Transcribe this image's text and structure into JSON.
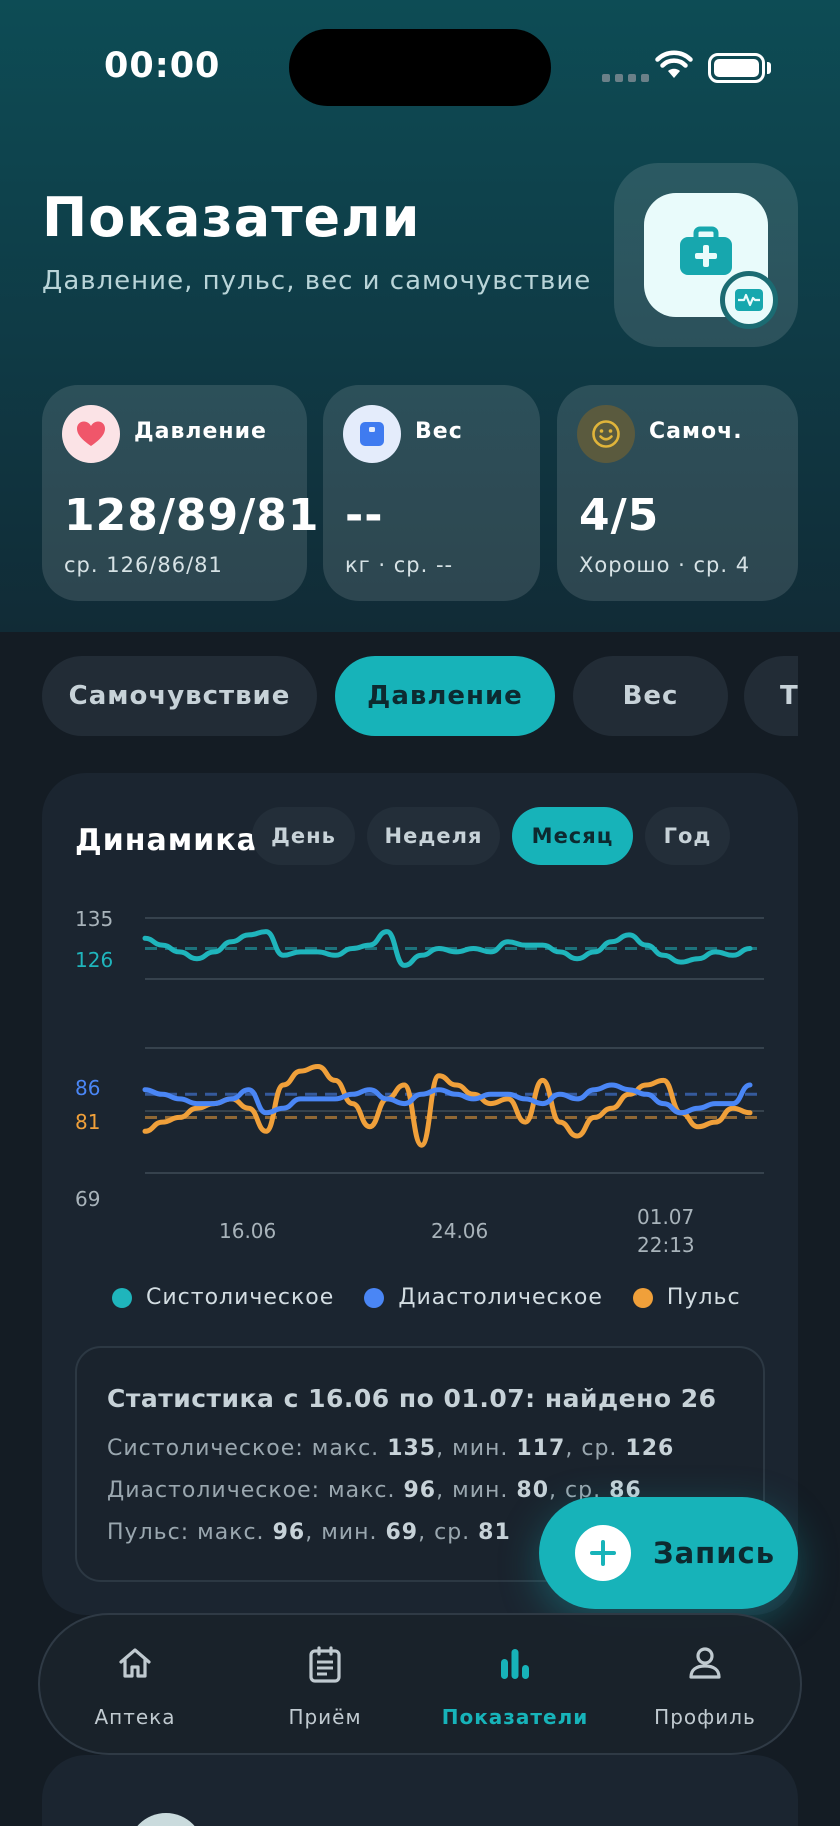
{
  "status_bar": {
    "time": "00:00"
  },
  "header": {
    "title": "Показатели",
    "subtitle": "Давление, пульс, вес и самочувствие",
    "badge_icon": "medical-kit-icon"
  },
  "metrics": [
    {
      "id": "pressure",
      "label": "Давление",
      "value": "128/89/81",
      "sub": "ср. 126/86/81",
      "icon": "heart-icon",
      "color": "#f0566a"
    },
    {
      "id": "weight",
      "label": "Вес",
      "value": "--",
      "sub": "кг · ср. --",
      "icon": "scale-icon",
      "color": "#3f7bf0"
    },
    {
      "id": "mood",
      "label": "Самоч.",
      "value": "4/5",
      "sub": "Хорошо · ср. 4",
      "icon": "smile-icon",
      "color": "#e0b43a"
    }
  ],
  "tabs": [
    {
      "label": "Самочувствие",
      "active": false
    },
    {
      "label": "Давление",
      "active": true
    },
    {
      "label": "Вес",
      "active": false
    },
    {
      "label": "Температура",
      "active": false
    }
  ],
  "chart_card": {
    "title": "Динамика",
    "periods": [
      {
        "label": "День",
        "active": false
      },
      {
        "label": "Неделя",
        "active": false
      },
      {
        "label": "Месяц",
        "active": true
      },
      {
        "label": "Год",
        "active": false
      }
    ]
  },
  "chart_data": {
    "type": "line",
    "y_ticks": [
      {
        "value": 135,
        "label": "135",
        "color": "#a8b3ba"
      },
      {
        "value": 126,
        "label": "126",
        "color": "#1fb5bc"
      },
      {
        "value": 86,
        "label": "86",
        "color": "#4a86f5"
      },
      {
        "value": 81,
        "label": "81",
        "color": "#f0a03a"
      },
      {
        "value": 69,
        "label": "69",
        "color": "#a8b3ba"
      }
    ],
    "x_ticks": [
      "16.06",
      "24.06",
      "01.07",
      "22:13"
    ],
    "series": [
      {
        "name": "Систолическое",
        "color": "#1fb5bc",
        "average": 126,
        "values": [
          129,
          127,
          125,
          123,
          125,
          128,
          130,
          131,
          124,
          125,
          125,
          124,
          126,
          127,
          131,
          121,
          124,
          126,
          125,
          126,
          125,
          128,
          127,
          127,
          125,
          123,
          125,
          128,
          130,
          127,
          124,
          122,
          123,
          125,
          124,
          126
        ]
      },
      {
        "name": "Диастолическое",
        "color": "#4a86f5",
        "average": 86,
        "values": [
          87,
          86,
          85,
          84,
          84,
          85,
          87,
          82,
          83,
          85,
          85,
          85,
          86,
          87,
          85,
          84,
          86,
          87,
          86,
          85,
          86,
          86,
          85,
          84,
          86,
          85,
          87,
          88,
          87,
          86,
          84,
          82,
          83,
          84,
          84,
          88
        ]
      },
      {
        "name": "Пульс",
        "color": "#f0a03a",
        "average": 81,
        "values": [
          78,
          80,
          81,
          83,
          84,
          85,
          83,
          78,
          88,
          91,
          92,
          89,
          84,
          79,
          85,
          88,
          75,
          90,
          88,
          86,
          84,
          85,
          80,
          89,
          80,
          77,
          81,
          83,
          86,
          88,
          89,
          82,
          79,
          80,
          83,
          82
        ]
      }
    ],
    "legend": [
      "Систолическое",
      "Диастолическое",
      "Пульс"
    ]
  },
  "stats": {
    "title": "Статистика с 16.06 по 01.07: найдено 26",
    "rows": [
      {
        "name": "Систолическое",
        "max_label": "макс.",
        "max": "135",
        "min_label": "мин.",
        "min": "117",
        "avg_label": "ср.",
        "avg": "126"
      },
      {
        "name": "Диастолическое",
        "max_label": "макс.",
        "max": "96",
        "min_label": "мин.",
        "min": "80",
        "avg_label": "ср.",
        "avg": "86"
      },
      {
        "name": "Пульс",
        "max_label": "макс.",
        "max": "96",
        "min_label": "мин.",
        "min": "69",
        "avg_label": "ср.",
        "avg": "81"
      }
    ]
  },
  "fab": {
    "label": "Запись"
  },
  "tabbar": [
    {
      "label": "Аптека",
      "icon": "house-icon",
      "active": false
    },
    {
      "label": "Приём",
      "icon": "list-icon",
      "active": false
    },
    {
      "label": "Показатели",
      "icon": "bar-chart-icon",
      "active": true
    },
    {
      "label": "Профиль",
      "icon": "person-icon",
      "active": false
    }
  ],
  "colors": {
    "accent": "#17b3b9",
    "background": "#141c24",
    "card": "#1b2530"
  }
}
